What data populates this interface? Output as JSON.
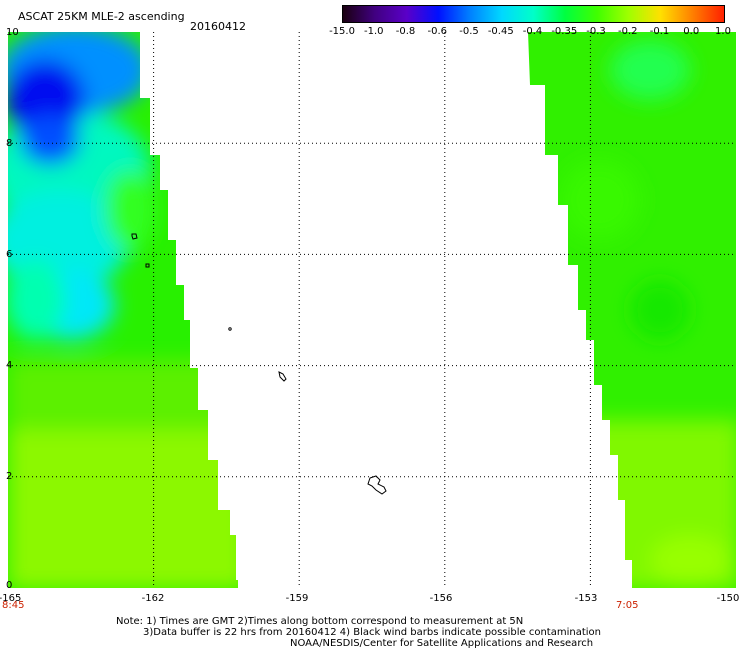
{
  "header": {
    "title": "ASCAT 25KM MLE-2 ascending",
    "date": "20160412"
  },
  "colorbar": {
    "labels": [
      "-15.0",
      "-1.0",
      "-0.8",
      "-0.6",
      "-0.5",
      "-0.45",
      "-0.4",
      "-0.35",
      "-0.3",
      "-0.2",
      "-0.1",
      "0.0",
      "1.0"
    ],
    "colors": [
      "#1a0010",
      "#400080",
      "#5a00c8",
      "#0010ff",
      "#0080ff",
      "#00d8ff",
      "#00ffc8",
      "#00ff40",
      "#40ff00",
      "#a0ff00",
      "#ffe000",
      "#ff8000",
      "#ff2000"
    ]
  },
  "axes": {
    "y_ticks": [
      "0",
      "2",
      "4",
      "6",
      "8",
      "10"
    ],
    "x_ticks": [
      "-165",
      "-162",
      "-159",
      "-156",
      "-153",
      "-150"
    ],
    "lon_range": [
      -165,
      -150
    ],
    "lat_range": [
      0,
      10
    ]
  },
  "swath_times": {
    "left": "8:45",
    "right": "7:05"
  },
  "notes": {
    "line1": "Note: 1) Times are GMT 2)Times along bottom correspond to measurement at 5N",
    "line2": "3)Data buffer is 22 hrs from 20160412 4) Black wind barbs indicate possible contamination",
    "line3": "NOAA/NESDIS/Center for Satellite Applications and Research"
  }
}
